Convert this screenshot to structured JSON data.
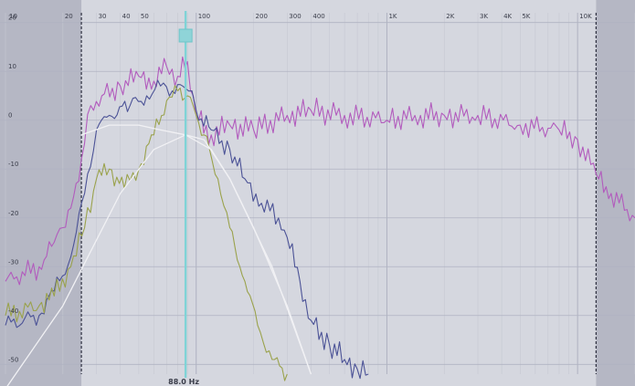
{
  "colors": {
    "panel": "#d5d7df",
    "outside_band": "#b5b7c4",
    "grid_major": "#b0b3c2",
    "grid_minor": "#c6c8d2",
    "marker_line": "#7fd3d6",
    "marker_handle": "#8fd4d8",
    "trace_magenta": "#b25bbd",
    "trace_navy": "#4b5296",
    "trace_olive": "#9aa24c",
    "curve_white": "#f1f1f4"
  },
  "axis": {
    "x_scale": "log",
    "x_min": 10,
    "x_max": 20000,
    "y_min": -52,
    "y_max": 22,
    "freq_ticks": [
      {
        "value": 10,
        "label": "10"
      },
      {
        "value": 20,
        "label": "20"
      },
      {
        "value": 30,
        "label": "30"
      },
      {
        "value": 40,
        "label": "40"
      },
      {
        "value": 50,
        "label": "50"
      },
      {
        "value": 100,
        "label": "100"
      },
      {
        "value": 200,
        "label": "200"
      },
      {
        "value": 300,
        "label": "300"
      },
      {
        "value": 400,
        "label": "400"
      },
      {
        "value": 1000,
        "label": "1K"
      },
      {
        "value": 2000,
        "label": "2K"
      },
      {
        "value": 3000,
        "label": "3K"
      },
      {
        "value": 4000,
        "label": "4K"
      },
      {
        "value": 5000,
        "label": "5K"
      },
      {
        "value": 10000,
        "label": "10K"
      }
    ],
    "db_ticks": [
      {
        "value": 20,
        "label": "20"
      },
      {
        "value": 10,
        "label": "10"
      },
      {
        "value": 0,
        "label": "0"
      },
      {
        "value": -10,
        "label": "-10"
      },
      {
        "value": -20,
        "label": "-20"
      },
      {
        "value": -30,
        "label": "-30"
      },
      {
        "value": -40,
        "label": "-40"
      },
      {
        "value": -50,
        "label": "-50"
      }
    ]
  },
  "band": {
    "low_hz": 25,
    "high_hz": 12500
  },
  "crossover": {
    "freq_hz": 88,
    "readout": "88.0 Hz"
  },
  "chart_data": {
    "type": "line",
    "x_scale": "log",
    "xlim": [
      10,
      20000
    ],
    "ylim": [
      -52,
      22
    ],
    "series": [
      {
        "color": "magenta",
        "points": [
          [
            10,
            -33
          ],
          [
            15,
            -30
          ],
          [
            18,
            -25
          ],
          [
            20,
            -22
          ],
          [
            22,
            -18
          ],
          [
            25,
            -8
          ],
          [
            28,
            3
          ],
          [
            32,
            5
          ],
          [
            40,
            7
          ],
          [
            50,
            9
          ],
          [
            60,
            8
          ],
          [
            70,
            11
          ],
          [
            80,
            9
          ],
          [
            90,
            12
          ],
          [
            100,
            1
          ],
          [
            120,
            -3
          ],
          [
            150,
            -1
          ],
          [
            200,
            -2
          ],
          [
            300,
            1
          ],
          [
            400,
            2
          ],
          [
            600,
            1
          ],
          [
            1000,
            0
          ],
          [
            1500,
            1
          ],
          [
            2000,
            1
          ],
          [
            3000,
            1
          ],
          [
            5000,
            -1
          ],
          [
            8000,
            -2
          ],
          [
            10000,
            -4
          ],
          [
            12500,
            -11
          ],
          [
            15000,
            -15
          ],
          [
            20000,
            -20
          ]
        ]
      },
      {
        "color": "navy",
        "points": [
          [
            10,
            -42
          ],
          [
            15,
            -40
          ],
          [
            18,
            -35
          ],
          [
            22,
            -28
          ],
          [
            26,
            -15
          ],
          [
            30,
            -2
          ],
          [
            35,
            1
          ],
          [
            45,
            3
          ],
          [
            55,
            5
          ],
          [
            65,
            7
          ],
          [
            75,
            6
          ],
          [
            85,
            7
          ],
          [
            95,
            6
          ],
          [
            100,
            2
          ],
          [
            120,
            -2
          ],
          [
            150,
            -6
          ],
          [
            180,
            -12
          ],
          [
            220,
            -17
          ],
          [
            270,
            -20
          ],
          [
            300,
            -24
          ],
          [
            350,
            -33
          ],
          [
            400,
            -41
          ],
          [
            500,
            -46
          ],
          [
            600,
            -49
          ],
          [
            700,
            -51
          ],
          [
            800,
            -52
          ]
        ]
      },
      {
        "color": "olive",
        "points": [
          [
            10,
            -40
          ],
          [
            15,
            -38
          ],
          [
            18,
            -36
          ],
          [
            22,
            -30
          ],
          [
            26,
            -22
          ],
          [
            30,
            -12
          ],
          [
            35,
            -10
          ],
          [
            42,
            -14
          ],
          [
            50,
            -10
          ],
          [
            60,
            -3
          ],
          [
            70,
            4
          ],
          [
            80,
            6
          ],
          [
            90,
            5
          ],
          [
            100,
            1
          ],
          [
            110,
            -3
          ],
          [
            130,
            -12
          ],
          [
            150,
            -22
          ],
          [
            180,
            -33
          ],
          [
            210,
            -42
          ],
          [
            250,
            -49
          ],
          [
            300,
            -52
          ]
        ]
      },
      {
        "color": "white",
        "points": [
          [
            10,
            -55
          ],
          [
            20,
            -38
          ],
          [
            40,
            -15
          ],
          [
            60,
            -6
          ],
          [
            88,
            -3
          ],
          [
            110,
            -4
          ],
          [
            150,
            -12
          ],
          [
            250,
            -30
          ],
          [
            400,
            -52
          ]
        ]
      },
      {
        "color": "white",
        "points": [
          [
            25,
            -3
          ],
          [
            35,
            -1
          ],
          [
            50,
            -1
          ],
          [
            65,
            -2
          ],
          [
            88,
            -3
          ],
          [
            120,
            -6
          ],
          [
            150,
            -12
          ],
          [
            200,
            -22
          ],
          [
            300,
            -38
          ],
          [
            400,
            -52
          ]
        ]
      }
    ]
  }
}
